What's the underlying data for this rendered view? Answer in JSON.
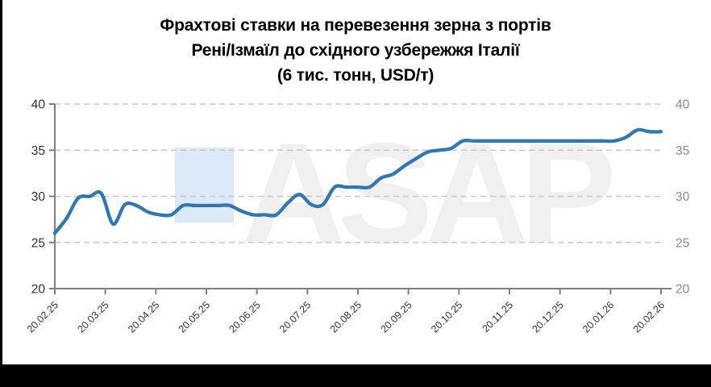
{
  "chart": {
    "title_line1": "Фрахтові ставки на перевезення зерна з портів",
    "title_line2": "Рені/Ізмаїл до східного узбережжя Італії",
    "title_line3": "(6 тис. тонн, USD/т)"
  },
  "watermark": {
    "text": "ASAP",
    "square_color": "#dbeaf6",
    "text_color": "#f0f0f0"
  },
  "chart_data": {
    "type": "line",
    "title": "Фрахтові ставки на перевезення зерна з портів Рені/Ізмаїл до східного узбережжя Італії (6 тис. тонн, USD/т)",
    "x_unit": "weekly dates from 20.02.25 to 20.02.26",
    "x_tick_labels": [
      "20.02.25",
      "20.03.25",
      "20.04.25",
      "20.05.25",
      "20.06.25",
      "20.07.25",
      "20.08.25",
      "20.09.25",
      "20.10.25",
      "20.11.25",
      "20.12.25",
      "20.01.26",
      "20.02.26"
    ],
    "y_ticks": [
      20,
      25,
      30,
      35,
      40
    ],
    "ylim": [
      20,
      40
    ],
    "y_axis_sides": "both",
    "grid": "horizontal dashed",
    "legend": "none",
    "line_color": "#2e78b5",
    "grid_color": "#c8c8c8",
    "axis_color": "#7f7f7f",
    "label_color_left": "#303030",
    "label_color_right": "#8c8c8c",
    "series": [
      {
        "name": "Freight rate (6 thousand tonnes, USD/t)",
        "values": [
          26,
          27.6,
          29.8,
          30,
          30.3,
          27,
          29.1,
          29,
          28.3,
          28,
          28,
          29,
          29,
          29,
          29,
          29,
          28.4,
          28,
          28,
          28,
          29.3,
          30.2,
          29.1,
          29.1,
          31,
          31,
          31,
          31,
          32,
          32.4,
          33.3,
          34.1,
          34.8,
          35,
          35.2,
          36,
          36,
          36,
          36,
          36,
          36,
          36,
          36,
          36,
          36,
          36,
          36,
          36,
          36,
          36.4,
          37.2,
          37,
          37
        ]
      }
    ]
  }
}
